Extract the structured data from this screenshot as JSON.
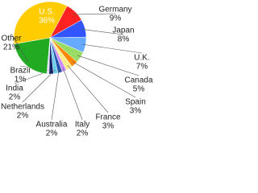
{
  "chart_data": {
    "type": "pie",
    "categories": [
      "U.S.",
      "Germany",
      "Japan",
      "U.K.",
      "Canada",
      "Spain",
      "France",
      "Italy",
      "Australia",
      "Netherlands",
      "India",
      "Brazil",
      "Other"
    ],
    "values": [
      36,
      9,
      8,
      7,
      5,
      3,
      3,
      2,
      2,
      2,
      2,
      1,
      21
    ],
    "value_labels": [
      "36%",
      "9%",
      "8%",
      "7%",
      "5%",
      "3%",
      "3%",
      "2%",
      "2%",
      "2%",
      "2%",
      "1%",
      "21%"
    ],
    "colors": [
      "#ffcc00",
      "#ff2222",
      "#3355ff",
      "#66aaff",
      "#99dd66",
      "#ff8800",
      "#ffee88",
      "#cc88ff",
      "#2255aa",
      "#66ccee",
      "#112266",
      "#ddddff",
      "#22aa22"
    ]
  }
}
